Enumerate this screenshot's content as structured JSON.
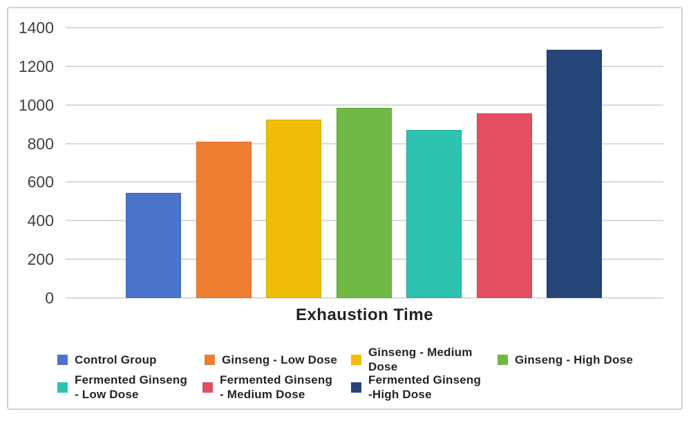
{
  "chart_data": {
    "type": "bar",
    "title": "",
    "xlabel": "Exhaustion Time",
    "ylabel": "",
    "ylim": [
      0,
      1400
    ],
    "yticks": [
      0,
      200,
      400,
      600,
      800,
      1000,
      1200,
      1400
    ],
    "grid": true,
    "legend_position": "bottom",
    "categories": [
      "Control Group",
      "Ginseng - Low Dose",
      "Ginseng - Medium Dose",
      "Ginseng - High Dose",
      "Fermented Ginseng - Low Dose",
      "Fermented Ginseng - Medium Dose",
      "Fermented Ginseng -High Dose"
    ],
    "values": [
      545,
      810,
      925,
      985,
      870,
      955,
      1285
    ],
    "series": [
      {
        "label": "Control Group",
        "value": 545,
        "color": "#4a74c9",
        "border": "#3d65b8",
        "legend_lines": [
          "Control Group"
        ]
      },
      {
        "label": "Ginseng - Low Dose",
        "value": 810,
        "color": "#ee7f31",
        "border": "#d96f24",
        "legend_lines": [
          "Ginseng - Low Dose"
        ]
      },
      {
        "label": "Ginseng - Medium Dose",
        "value": 925,
        "color": "#f0bd08",
        "border": "#d8a705",
        "legend_lines": [
          "Ginseng - Medium",
          "Dose"
        ]
      },
      {
        "label": "Ginseng - High Dose",
        "value": 985,
        "color": "#70b944",
        "border": "#5fa338",
        "legend_lines": [
          "Ginseng - High Dose"
        ]
      },
      {
        "label": "Fermented Ginseng - Low Dose",
        "value": 870,
        "color": "#2ec2b0",
        "border": "#25a897",
        "legend_lines": [
          "Fermented Ginseng",
          " - Low Dose"
        ]
      },
      {
        "label": "Fermented Ginseng - Medium Dose",
        "value": 955,
        "color": "#e34f61",
        "border": "#c83f51",
        "legend_lines": [
          "Fermented Ginseng",
          " - Medium Dose"
        ]
      },
      {
        "label": "Fermented Ginseng -High Dose",
        "value": 1285,
        "color": "#264579",
        "border": "#1b3765",
        "legend_lines": [
          "Fermented Ginseng",
          "-High Dose"
        ]
      }
    ],
    "colors": {
      "gridline": "#d9d9d9",
      "frame_border": "#cdd0d3",
      "tick_text": "#404040",
      "label_text": "#1f2328"
    }
  }
}
